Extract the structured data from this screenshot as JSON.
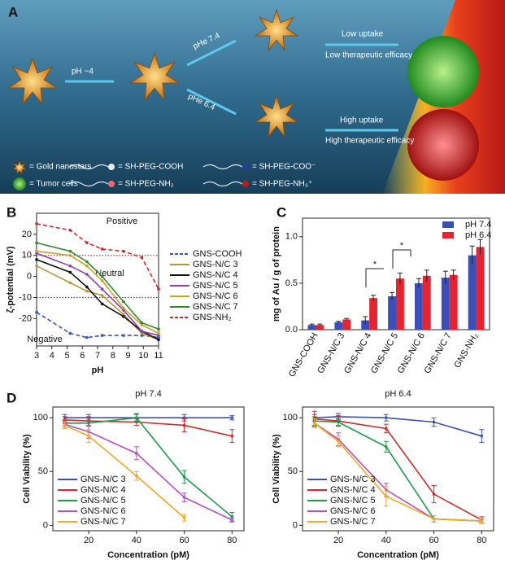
{
  "panel_a": {
    "panel": "A",
    "steps": [
      "pH ~4",
      "pHe 7.4",
      "pHe 6.4"
    ],
    "outcomes": [
      "Low uptake",
      "Low therapeutic efficacy",
      "High uptake",
      "High therapeutic efficacy"
    ],
    "legend": [
      "= Gold nanostars",
      "= SH-PEG-COOH",
      "= SH-PEG-COO⁻",
      "= Tumor cells",
      "= SH-PEG-NH₂",
      "= SH-PEG-NH₃⁺"
    ]
  },
  "chart_data": [
    {
      "type": "line",
      "panel": "B",
      "xlabel": "pH",
      "ylabel": "ζ-potential (mV)",
      "x": [
        3,
        5.2,
        6.3,
        7.3,
        8.7,
        9.9,
        11
      ],
      "xlim": [
        3,
        11
      ],
      "xticks": [
        3,
        4,
        5,
        6,
        7,
        8,
        9,
        10,
        11
      ],
      "ylim": [
        -33,
        30
      ],
      "yticks": [
        -20,
        -10,
        0,
        10,
        20
      ],
      "legend": "right",
      "reference_lines": [
        {
          "value": 10,
          "color": "#d62728"
        },
        {
          "value": -10,
          "color": "#3333cc"
        }
      ],
      "annotations": [
        {
          "text": "Positive",
          "color": "#d62728"
        },
        {
          "text": "Neutral",
          "color": "#111111"
        },
        {
          "text": "Negative",
          "color": "#3333cc"
        }
      ],
      "series": [
        {
          "name": "GNS-COOH",
          "color": "#3355cc",
          "style": "dashed",
          "values": [
            -17,
            -27,
            -29,
            -28,
            -28,
            -28,
            -29
          ]
        },
        {
          "name": "GNS-N/C 3",
          "color": "#b8963c",
          "values": [
            5,
            -3,
            -7,
            -9,
            -18,
            -27,
            -30
          ]
        },
        {
          "name": "GNS-N/C 4",
          "color": "#111111",
          "values": [
            8,
            2,
            -5,
            -13,
            -19,
            -26,
            -30
          ]
        },
        {
          "name": "GNS-N/C 5",
          "color": "#8a3fb0",
          "values": [
            11,
            5,
            1,
            -6,
            -16,
            -26,
            -28
          ]
        },
        {
          "name": "GNS-N/C 6",
          "color": "#c9a227",
          "values": [
            12,
            10,
            5,
            -2,
            -15,
            -23,
            -27
          ]
        },
        {
          "name": "GNS-N/C 7",
          "color": "#2e8b2e",
          "values": [
            16,
            12,
            7,
            0,
            -12,
            -22,
            -25
          ]
        },
        {
          "name": "GNS-NH₂",
          "color": "#d62728",
          "style": "dashed",
          "values": [
            25,
            22,
            16,
            13,
            12,
            9,
            -6
          ]
        }
      ]
    },
    {
      "type": "bar",
      "panel": "C",
      "ylabel": "mg of Au / g of protein",
      "categories": [
        "GNS-COOH",
        "GNS-N/C 3",
        "GNS-N/C 4",
        "GNS-N/C 5",
        "GNS-N/C 6",
        "GNS-N/C 7",
        "GNS-NH₂"
      ],
      "ylim": [
        0,
        1.2
      ],
      "yticks": [
        {
          "value": 0,
          "label": "0.0"
        },
        0.5,
        {
          "value": 1,
          "label": "1.0"
        }
      ],
      "legend": "upper right",
      "annotations": [
        {
          "text": "*",
          "color": "#111111"
        },
        {
          "text": "*",
          "color": "#111111"
        }
      ],
      "series": [
        {
          "name": "pH 7.4",
          "color": "#3b4fb8",
          "values": [
            0.05,
            0.08,
            0.1,
            0.36,
            0.5,
            0.56,
            0.8
          ],
          "errors": [
            0.01,
            0.01,
            0.04,
            0.04,
            0.05,
            0.07,
            0.1
          ]
        },
        {
          "name": "pH 6.4",
          "color": "#e8222e",
          "values": [
            0.05,
            0.11,
            0.34,
            0.55,
            0.58,
            0.59,
            0.89
          ],
          "errors": [
            0.01,
            0.01,
            0.03,
            0.06,
            0.06,
            0.05,
            0.08
          ]
        }
      ]
    },
    {
      "type": "line",
      "panel": "D",
      "title": "pH 7.4",
      "xlabel": "Concentration (pM)",
      "ylabel": "Cell Viability (%)",
      "x": [
        10,
        20,
        40,
        60,
        80
      ],
      "xlim": [
        5,
        85
      ],
      "xticks": [
        20,
        40,
        60,
        80
      ],
      "ylim": [
        -5,
        110
      ],
      "yticks": [
        0,
        50,
        100
      ],
      "legend": "lower left",
      "series": [
        {
          "name": "GNS-N/C 3",
          "color": "#3b4fb8",
          "values": [
            100,
            100,
            100,
            100,
            100
          ],
          "errors": [
            3,
            3,
            3,
            3,
            2
          ]
        },
        {
          "name": "GNS-N/C 4",
          "color": "#d62828",
          "values": [
            98,
            97,
            96,
            93,
            83
          ],
          "errors": [
            3,
            4,
            3,
            6,
            6
          ]
        },
        {
          "name": "GNS-N/C 5",
          "color": "#1e9a4a",
          "values": [
            95,
            95,
            100,
            45,
            8
          ],
          "errors": [
            3,
            3,
            4,
            6,
            4
          ]
        },
        {
          "name": "GNS-N/C 6",
          "color": "#b34fc8",
          "values": [
            94,
            87,
            67,
            26,
            5
          ],
          "errors": [
            4,
            6,
            6,
            4,
            2
          ]
        },
        {
          "name": "GNS-N/C 7",
          "color": "#f5a623",
          "values": [
            93,
            83,
            46,
            7,
            null
          ],
          "errors": [
            3,
            6,
            4,
            3,
            null
          ]
        }
      ]
    },
    {
      "type": "line",
      "title": "pH 6.4",
      "xlabel": "Concentration (pM)",
      "ylabel": "Cell Viability (%)",
      "x": [
        10,
        20,
        40,
        60,
        80
      ],
      "xlim": [
        5,
        85
      ],
      "xticks": [
        20,
        40,
        60,
        80
      ],
      "ylim": [
        -5,
        110
      ],
      "yticks": [
        0,
        50,
        100
      ],
      "legend": "lower left",
      "series": [
        {
          "name": "GNS-N/C 3",
          "color": "#3b4fb8",
          "values": [
            100,
            101,
            100,
            96,
            83
          ],
          "errors": [
            3,
            3,
            3,
            4,
            6
          ]
        },
        {
          "name": "GNS-N/C 4",
          "color": "#d62828",
          "values": [
            99,
            97,
            90,
            29,
            5
          ],
          "errors": [
            7,
            5,
            4,
            8,
            3
          ]
        },
        {
          "name": "GNS-N/C 5",
          "color": "#1e9a4a",
          "values": [
            97,
            96,
            73,
            6,
            4
          ],
          "errors": [
            4,
            3,
            5,
            3,
            2
          ]
        },
        {
          "name": "GNS-N/C 6",
          "color": "#b34fc8",
          "values": [
            95,
            80,
            33,
            6,
            4
          ],
          "errors": [
            4,
            6,
            6,
            3,
            2
          ]
        },
        {
          "name": "GNS-N/C 7",
          "color": "#f5a623",
          "values": [
            95,
            78,
            27,
            6,
            4
          ],
          "errors": [
            4,
            5,
            9,
            3,
            2
          ]
        }
      ]
    }
  ]
}
